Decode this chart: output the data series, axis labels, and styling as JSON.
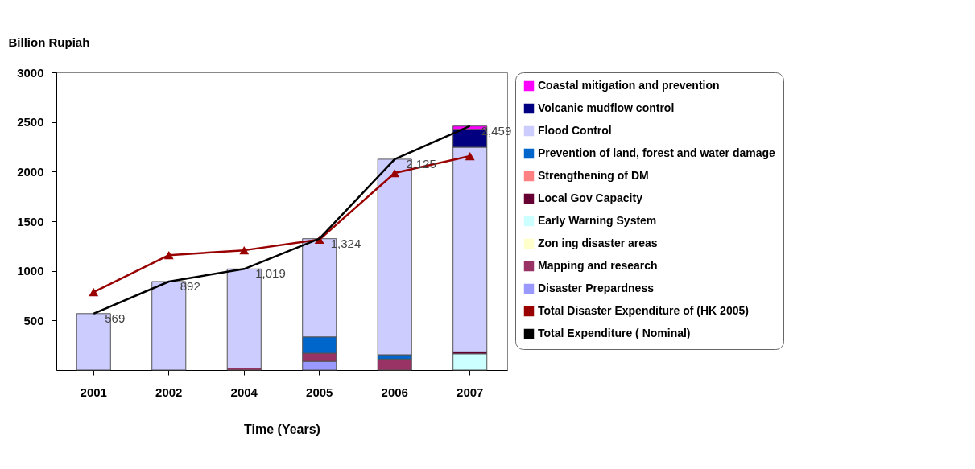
{
  "chart_data": {
    "type": "bar",
    "stacked": true,
    "xlabel": "Time (Years)",
    "ylabel": "Billion Rupiah",
    "categories": [
      "2001",
      "2002",
      "2004",
      "2005",
      "2006",
      "2007"
    ],
    "ylim": [
      0,
      3000
    ],
    "yticks": [
      500,
      1000,
      1500,
      2000,
      2500,
      3000
    ],
    "grid": false,
    "legend": "right",
    "series": [
      {
        "name": "Disaster Prepardness",
        "color": "#9999ff",
        "values": [
          null,
          null,
          null,
          88,
          null,
          null
        ]
      },
      {
        "name": "Mapping and research",
        "color": "#993366",
        "values": [
          null,
          null,
          20,
          82,
          111,
          null
        ]
      },
      {
        "name": "Zon ing   disaster areas",
        "color": "#ffffcc",
        "values": [
          null,
          null,
          null,
          null,
          null,
          null
        ]
      },
      {
        "name": "Early Warning System",
        "color": "#ccffff",
        "values": [
          null,
          null,
          null,
          null,
          null,
          164
        ]
      },
      {
        "name": "Local Gov Capacity",
        "color": "#660033",
        "values": [
          null,
          null,
          null,
          null,
          null,
          20
        ]
      },
      {
        "name": "Strengthening  of DM",
        "color": "#ff8080",
        "values": [
          null,
          null,
          null,
          null,
          null,
          null
        ]
      },
      {
        "name": "Prevention of land, forest and water damage",
        "color": "#0066cc",
        "values": [
          null,
          null,
          null,
          164,
          43,
          null
        ]
      },
      {
        "name": "Flood Control",
        "color": "#ccccff",
        "values": [
          569,
          892,
          999,
          990,
          1971,
          2062
        ]
      },
      {
        "name": "Volcanic mudflow control",
        "color": "#000080",
        "values": [
          null,
          null,
          null,
          null,
          null,
          180
        ]
      },
      {
        "name": "Coastal mitigation and prevention",
        "color": "#ff00ff",
        "values": [
          null,
          null,
          null,
          null,
          null,
          33
        ]
      },
      {
        "name": "Total  Disaster  Expenditure of (HK 2005)",
        "type": "line",
        "marker": "triangle",
        "color": "#990000",
        "values": [
          785,
          1158,
          1207,
          1315,
          1986,
          2156
        ]
      },
      {
        "name": "Total Expenditure ( Nominal)",
        "type": "line",
        "marker": "none",
        "color": "#000000",
        "values": [
          569,
          892,
          1019,
          1324,
          2125,
          2459
        ],
        "value_labels": [
          "569",
          "892",
          "1,019",
          "1,324",
          "2,125",
          "2,459"
        ]
      }
    ]
  }
}
